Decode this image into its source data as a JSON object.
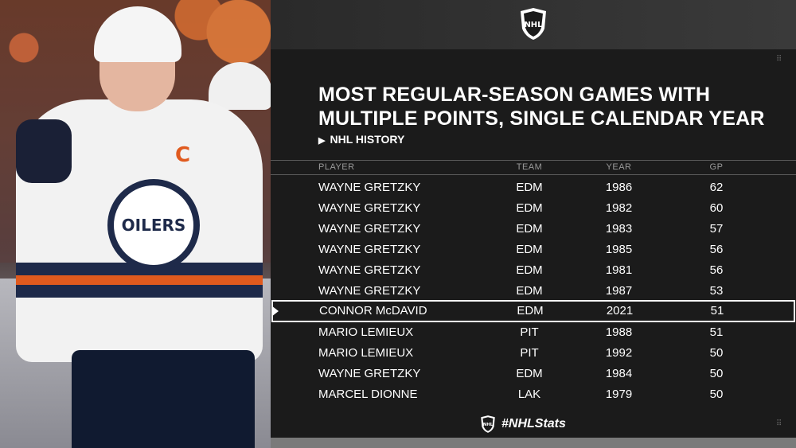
{
  "header": {
    "title_line1": "MOST REGULAR-SEASON GAMES WITH",
    "title_line2": "MULTIPLE POINTS, SINGLE CALENDAR YEAR",
    "subtitle": "NHL HISTORY",
    "logo_text": "NHL"
  },
  "photo": {
    "jersey_logo_text": "OILERS",
    "captain_letter": "C"
  },
  "table": {
    "columns": [
      "PLAYER",
      "TEAM",
      "YEAR",
      "GP"
    ],
    "rows": [
      {
        "player": "WAYNE GRETZKY",
        "team": "EDM",
        "year": "1986",
        "gp": "62"
      },
      {
        "player": "WAYNE GRETZKY",
        "team": "EDM",
        "year": "1982",
        "gp": "60"
      },
      {
        "player": "WAYNE GRETZKY",
        "team": "EDM",
        "year": "1983",
        "gp": "57"
      },
      {
        "player": "WAYNE GRETZKY",
        "team": "EDM",
        "year": "1985",
        "gp": "56"
      },
      {
        "player": "WAYNE GRETZKY",
        "team": "EDM",
        "year": "1981",
        "gp": "56"
      },
      {
        "player": "WAYNE GRETZKY",
        "team": "EDM",
        "year": "1987",
        "gp": "53"
      },
      {
        "player": "CONNOR McDAVID",
        "team": "EDM",
        "year": "2021",
        "gp": "51"
      },
      {
        "player": "MARIO LEMIEUX",
        "team": "PIT",
        "year": "1988",
        "gp": "51"
      },
      {
        "player": "MARIO LEMIEUX",
        "team": "PIT",
        "year": "1992",
        "gp": "50"
      },
      {
        "player": "WAYNE GRETZKY",
        "team": "EDM",
        "year": "1984",
        "gp": "50"
      },
      {
        "player": "MARCEL DIONNE",
        "team": "LAK",
        "year": "1979",
        "gp": "50"
      }
    ],
    "highlighted_row": 6
  },
  "footer": {
    "hashtag": "#NHLStats",
    "logo_text": "NHL"
  },
  "colors": {
    "background": "#1b1b1b",
    "text": "#ffffff",
    "header_text": "#9a9a9a",
    "oilers_orange": "#e05a1e",
    "oilers_navy": "#1e2a4a"
  },
  "icons": {
    "nhl_logo": "nhl-shield-icon",
    "subtitle_arrow": "triangle-right-icon",
    "highlight_marker": "triangle-right-icon"
  }
}
